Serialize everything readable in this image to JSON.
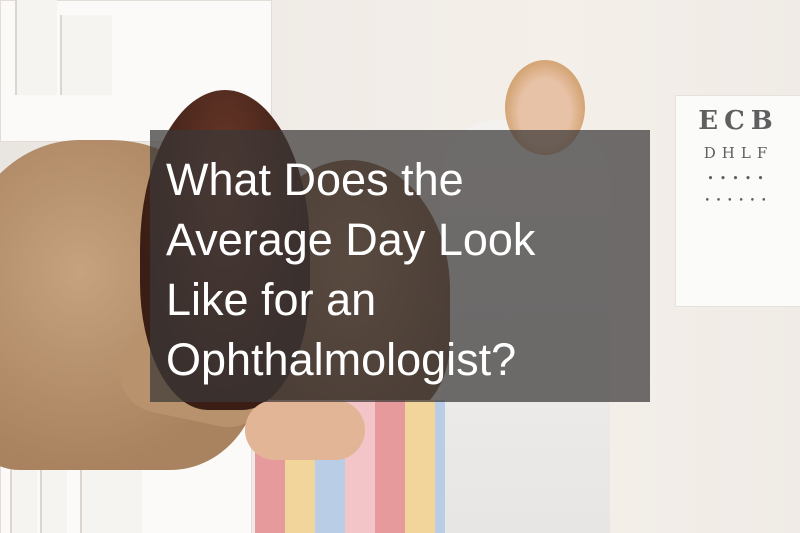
{
  "article": {
    "title_lines": [
      "What Does the",
      "Average Day Look",
      "Like for an",
      "Ophthalmologist?"
    ]
  },
  "photo": {
    "eye_chart_rows": [
      "ECB",
      "DHLF",
      "•••••",
      "••••••"
    ]
  }
}
